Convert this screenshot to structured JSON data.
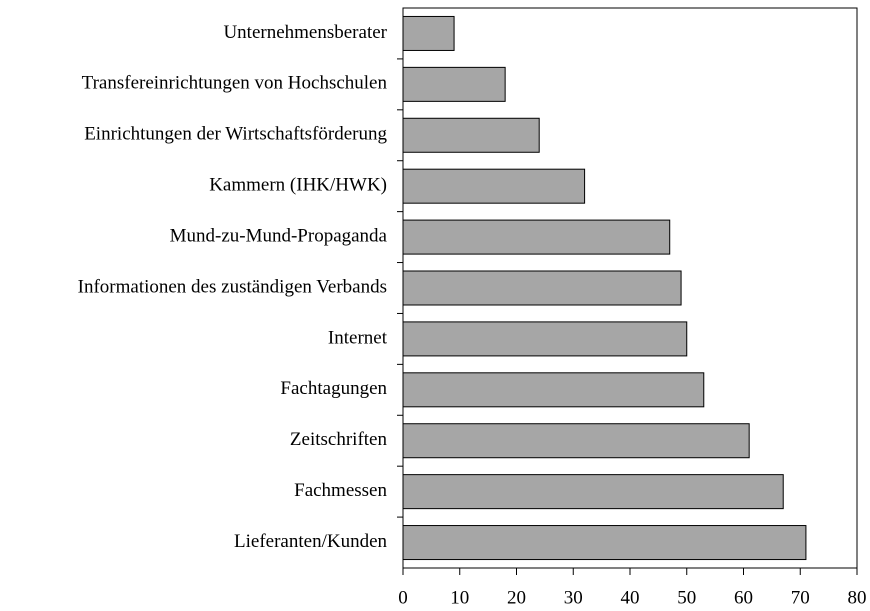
{
  "chart_data": {
    "type": "barh",
    "categories": [
      "Unternehmensberater",
      "Transfereinrichtungen von Hochschulen",
      "Einrichtungen der Wirtschaftsförderung",
      "Kammern (IHK/HWK)",
      "Mund-zu-Mund-Propaganda",
      "Informationen des zuständigen Verbands",
      "Internet",
      "Fachtagungen",
      "Zeitschriften",
      "Fachmessen",
      "Lieferanten/Kunden"
    ],
    "values": [
      9,
      18,
      24,
      32,
      47,
      49,
      50,
      53,
      61,
      67,
      71
    ],
    "color": "#a6a6a6",
    "xlim": [
      0,
      80
    ],
    "xticks": [
      0,
      10,
      20,
      30,
      40,
      50,
      60,
      70,
      80
    ],
    "grid": false
  }
}
